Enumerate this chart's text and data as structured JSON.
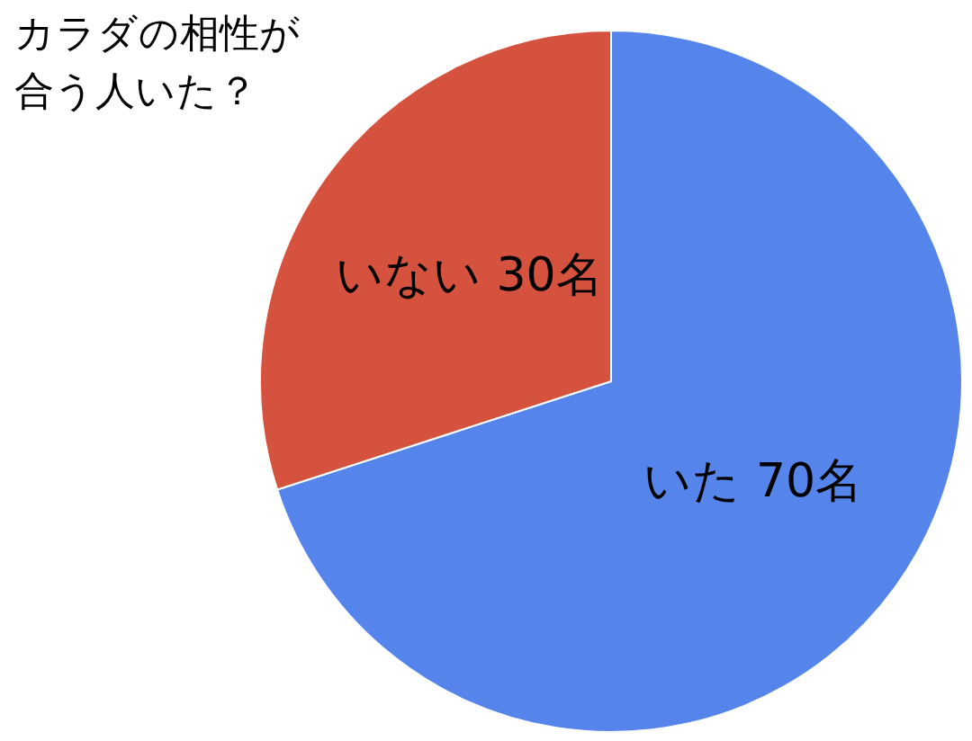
{
  "chart_data": {
    "type": "pie",
    "title": "カラダの相性が合う人いた？",
    "categories": [
      "いた",
      "いない"
    ],
    "values": [
      70,
      30
    ],
    "colors": [
      "#5585ea",
      "#d5523e"
    ],
    "value_labels": [
      "70名",
      "30名"
    ],
    "legend": false
  }
}
